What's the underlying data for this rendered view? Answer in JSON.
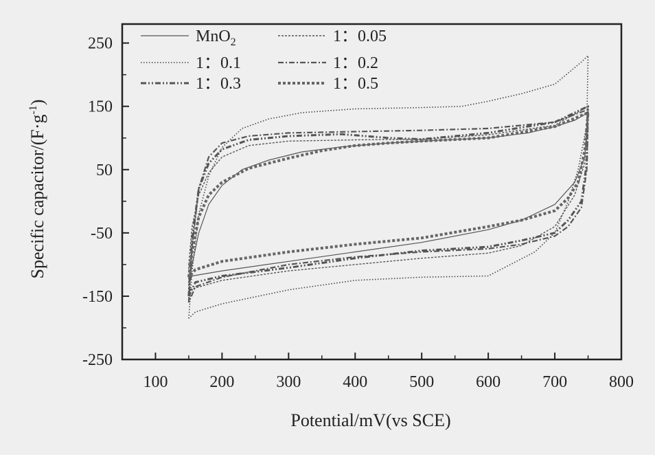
{
  "chart_data": {
    "type": "line",
    "xlabel": "Potential/mV(vs SCE)",
    "ylabel": "Specific capacitor/(F·g",
    "ylabel_sup": "-1",
    "ylabel_close": ")",
    "xlim": [
      50,
      800
    ],
    "ylim": [
      -250,
      280
    ],
    "xticks": [
      100,
      200,
      300,
      400,
      500,
      600,
      700,
      800
    ],
    "yticks": [
      250,
      150,
      50,
      -50,
      -150,
      -250
    ],
    "grid": false,
    "legend_position": "top-left",
    "series": [
      {
        "name": "MnO2",
        "name_main": "MnO",
        "name_sub": "2",
        "style": "solid",
        "charge": [
          [
            150,
            -130
          ],
          [
            155,
            -100
          ],
          [
            165,
            -50
          ],
          [
            180,
            -5
          ],
          [
            200,
            25
          ],
          [
            230,
            50
          ],
          [
            270,
            65
          ],
          [
            320,
            78
          ],
          [
            380,
            86
          ],
          [
            450,
            92
          ],
          [
            520,
            96
          ],
          [
            600,
            100
          ],
          [
            660,
            108
          ],
          [
            700,
            118
          ],
          [
            730,
            128
          ],
          [
            750,
            140
          ]
        ],
        "discharge": [
          [
            750,
            140
          ],
          [
            745,
            70
          ],
          [
            730,
            30
          ],
          [
            700,
            -5
          ],
          [
            650,
            -30
          ],
          [
            600,
            -45
          ],
          [
            500,
            -65
          ],
          [
            400,
            -80
          ],
          [
            300,
            -95
          ],
          [
            200,
            -110
          ],
          [
            155,
            -118
          ],
          [
            150,
            -130
          ]
        ]
      },
      {
        "name": "1:0.05",
        "name_main": "1：0.05",
        "style": "fine-dash",
        "charge": [
          [
            150,
            -100
          ],
          [
            155,
            -40
          ],
          [
            165,
            10
          ],
          [
            180,
            45
          ],
          [
            200,
            70
          ],
          [
            240,
            88
          ],
          [
            300,
            95
          ],
          [
            400,
            97
          ],
          [
            500,
            98
          ],
          [
            600,
            105
          ],
          [
            700,
            120
          ],
          [
            750,
            150
          ]
        ],
        "discharge": [
          [
            750,
            150
          ],
          [
            745,
            60
          ],
          [
            730,
            10
          ],
          [
            700,
            -40
          ],
          [
            650,
            -70
          ],
          [
            600,
            -82
          ],
          [
            500,
            -90
          ],
          [
            400,
            -100
          ],
          [
            300,
            -110
          ],
          [
            200,
            -125
          ],
          [
            150,
            -140
          ],
          [
            150,
            -100
          ]
        ]
      },
      {
        "name": "1:0.1",
        "name_main": "1：0.1",
        "style": "dotted",
        "charge": [
          [
            150,
            -185
          ],
          [
            155,
            -110
          ],
          [
            165,
            -20
          ],
          [
            180,
            40
          ],
          [
            200,
            85
          ],
          [
            230,
            115
          ],
          [
            270,
            130
          ],
          [
            320,
            140
          ],
          [
            400,
            146
          ],
          [
            500,
            148
          ],
          [
            560,
            150
          ],
          [
            600,
            158
          ],
          [
            650,
            170
          ],
          [
            700,
            185
          ],
          [
            740,
            220
          ],
          [
            750,
            230
          ]
        ],
        "discharge": [
          [
            750,
            230
          ],
          [
            748,
            120
          ],
          [
            735,
            50
          ],
          [
            720,
            0
          ],
          [
            700,
            -50
          ],
          [
            670,
            -80
          ],
          [
            600,
            -118
          ],
          [
            500,
            -120
          ],
          [
            400,
            -125
          ],
          [
            300,
            -140
          ],
          [
            200,
            -162
          ],
          [
            160,
            -175
          ],
          [
            150,
            -185
          ]
        ]
      },
      {
        "name": "1:0.2",
        "name_main": "1：0.2",
        "style": "dash-dot",
        "charge": [
          [
            150,
            -160
          ],
          [
            155,
            -70
          ],
          [
            165,
            20
          ],
          [
            180,
            70
          ],
          [
            200,
            92
          ],
          [
            240,
            103
          ],
          [
            300,
            108
          ],
          [
            400,
            110
          ],
          [
            500,
            112
          ],
          [
            600,
            115
          ],
          [
            700,
            125
          ],
          [
            750,
            145
          ]
        ],
        "discharge": [
          [
            750,
            145
          ],
          [
            748,
            50
          ],
          [
            740,
            -10
          ],
          [
            720,
            -40
          ],
          [
            700,
            -55
          ],
          [
            650,
            -68
          ],
          [
            600,
            -75
          ],
          [
            500,
            -80
          ],
          [
            400,
            -88
          ],
          [
            300,
            -100
          ],
          [
            200,
            -120
          ],
          [
            160,
            -135
          ],
          [
            150,
            -160
          ]
        ]
      },
      {
        "name": "1:0.3",
        "name_main": "1：0.3",
        "style": "dash-dot-dot",
        "charge": [
          [
            150,
            -150
          ],
          [
            155,
            -60
          ],
          [
            165,
            20
          ],
          [
            180,
            60
          ],
          [
            200,
            82
          ],
          [
            240,
            97
          ],
          [
            300,
            103
          ],
          [
            380,
            106
          ],
          [
            450,
            100
          ],
          [
            500,
            98
          ],
          [
            600,
            108
          ],
          [
            700,
            125
          ],
          [
            750,
            150
          ]
        ],
        "discharge": [
          [
            750,
            150
          ],
          [
            748,
            60
          ],
          [
            740,
            0
          ],
          [
            720,
            -30
          ],
          [
            700,
            -50
          ],
          [
            650,
            -62
          ],
          [
            600,
            -72
          ],
          [
            500,
            -78
          ],
          [
            400,
            -90
          ],
          [
            300,
            -105
          ],
          [
            200,
            -118
          ],
          [
            160,
            -128
          ],
          [
            150,
            -150
          ]
        ]
      },
      {
        "name": "1:0.5",
        "name_main": "1：0.5",
        "style": "thick-dot",
        "charge": [
          [
            150,
            -120
          ],
          [
            155,
            -80
          ],
          [
            165,
            -25
          ],
          [
            180,
            10
          ],
          [
            200,
            30
          ],
          [
            240,
            52
          ],
          [
            300,
            68
          ],
          [
            350,
            80
          ],
          [
            400,
            88
          ],
          [
            450,
            92
          ],
          [
            500,
            95
          ],
          [
            600,
            100
          ],
          [
            700,
            118
          ],
          [
            750,
            140
          ]
        ],
        "discharge": [
          [
            750,
            140
          ],
          [
            745,
            80
          ],
          [
            735,
            30
          ],
          [
            720,
            5
          ],
          [
            700,
            -15
          ],
          [
            650,
            -30
          ],
          [
            600,
            -40
          ],
          [
            500,
            -58
          ],
          [
            400,
            -68
          ],
          [
            300,
            -80
          ],
          [
            200,
            -95
          ],
          [
            160,
            -108
          ],
          [
            150,
            -120
          ]
        ]
      }
    ]
  }
}
